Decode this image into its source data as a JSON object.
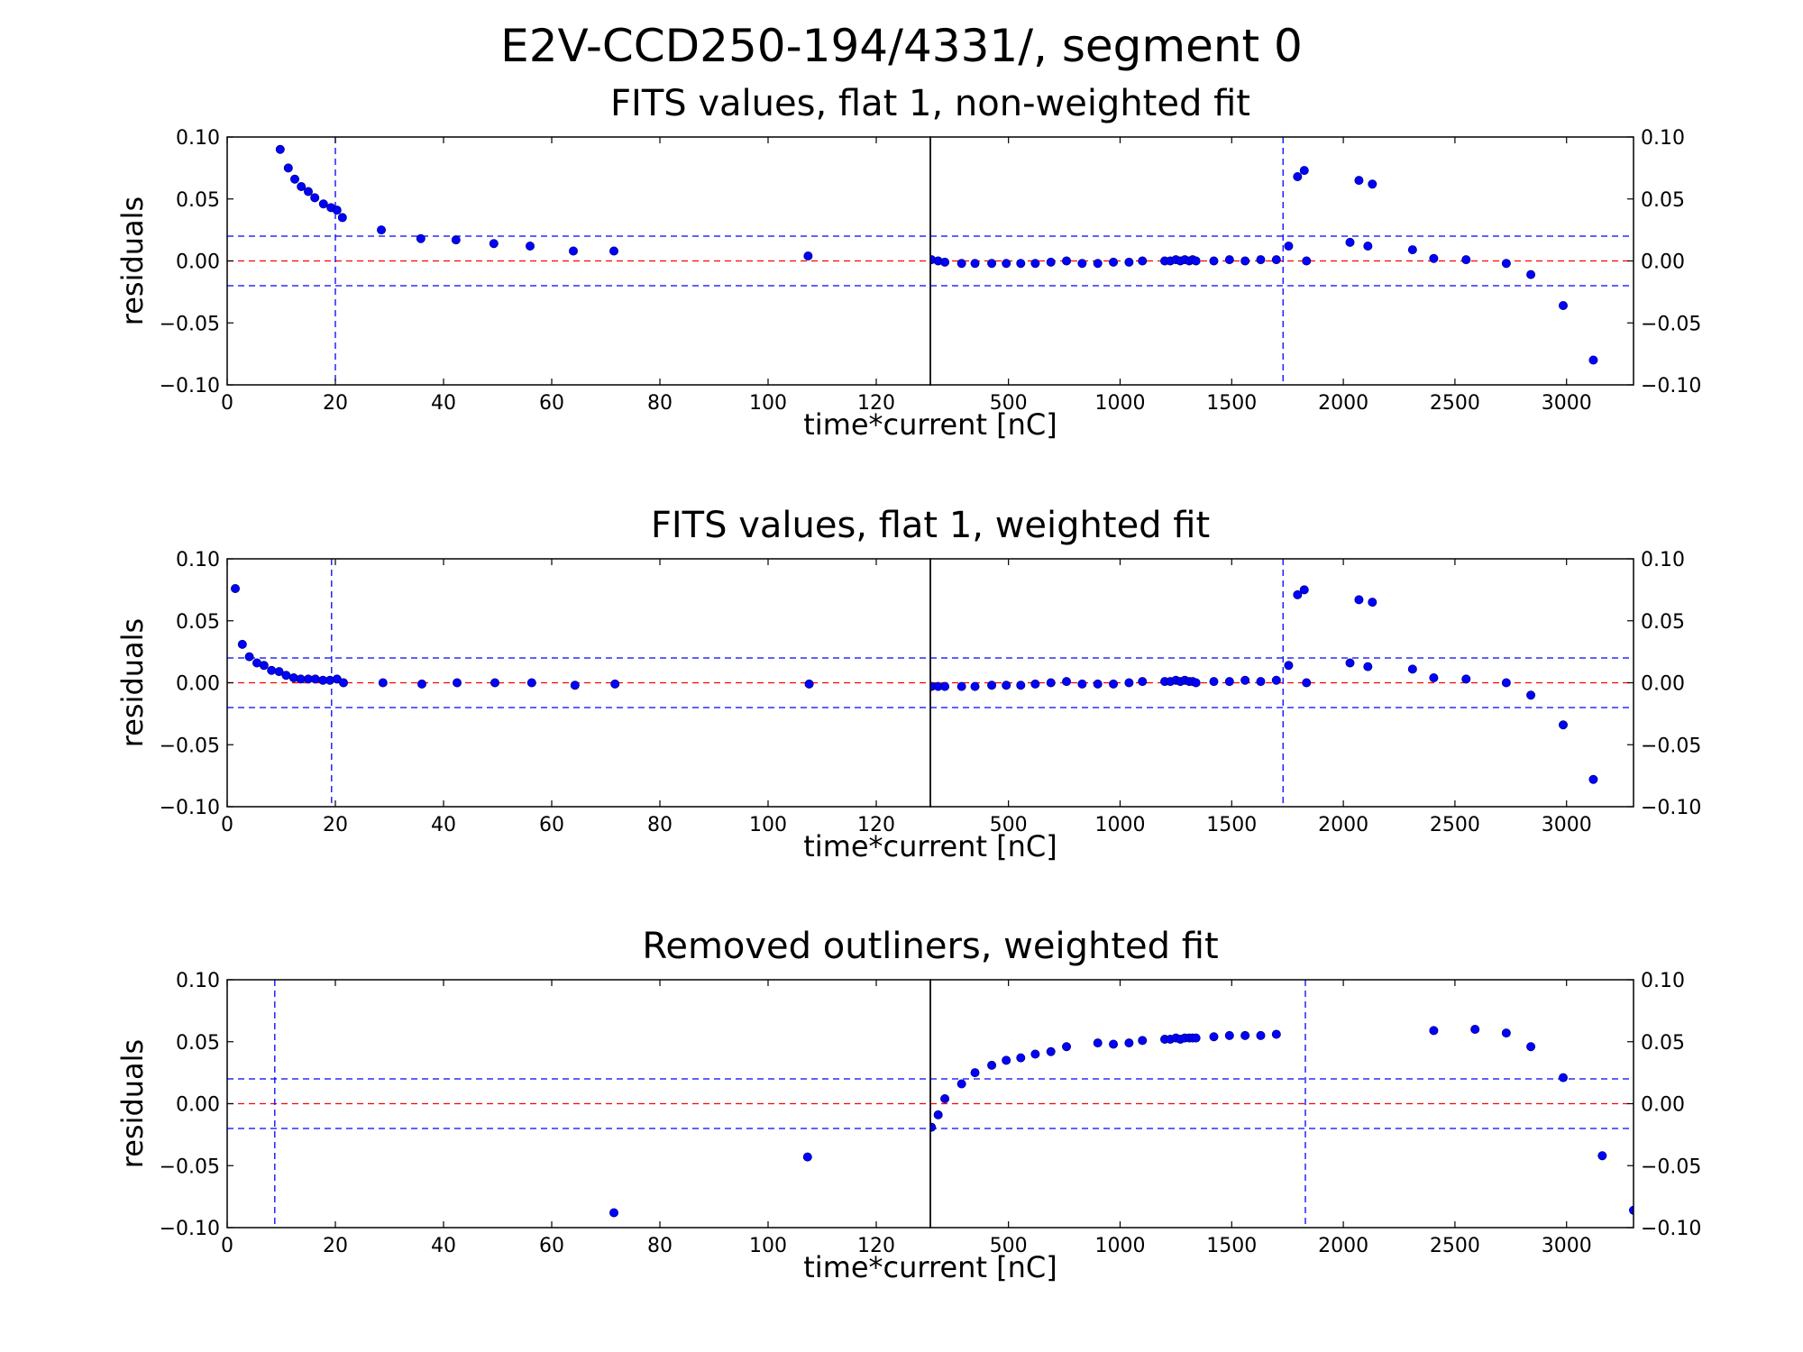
{
  "figure_title": "E2V-CCD250-194/4331/, segment 0",
  "colors": {
    "points": "#0000ff",
    "point_edge": "#000080",
    "zero_line": "#ff0000",
    "band_lines": "#0000ff"
  },
  "chart_data": [
    {
      "type": "scatter",
      "title": "FITS values, flat 1, non-weighted fit",
      "ylabel": "residuals",
      "xlabel": "time*current [nC]",
      "ylim": [
        -0.1,
        0.1
      ],
      "yticks": [
        "−0.10",
        "−0.05",
        "0.00",
        "0.05",
        "0.10"
      ],
      "yticks_right": [
        "−0.10",
        "−0.05",
        "0.00",
        "0.05",
        "0.10"
      ],
      "hlines": {
        "zero": 0.0,
        "band": [
          0.02,
          -0.02
        ]
      },
      "left": {
        "xlim": [
          0,
          130
        ],
        "xticks": [
          "0",
          "20",
          "40",
          "60",
          "80",
          "100",
          "120"
        ],
        "vline": 20,
        "points": [
          [
            9.8,
            0.09
          ],
          [
            11.3,
            0.075
          ],
          [
            12.5,
            0.066
          ],
          [
            13.7,
            0.06
          ],
          [
            15,
            0.056
          ],
          [
            16.2,
            0.051
          ],
          [
            17.8,
            0.046
          ],
          [
            19.2,
            0.043
          ],
          [
            20.3,
            0.041
          ],
          [
            21.3,
            0.035
          ],
          [
            28.5,
            0.025
          ],
          [
            35.8,
            0.018
          ],
          [
            42.3,
            0.017
          ],
          [
            49.3,
            0.014
          ],
          [
            56,
            0.012
          ],
          [
            64,
            0.008
          ],
          [
            71.5,
            0.008
          ],
          [
            107.4,
            0.004
          ]
        ]
      },
      "right": {
        "xlim": [
          150,
          3300
        ],
        "xticks": [
          "500",
          "1000",
          "1500",
          "2000",
          "2500",
          "3000"
        ],
        "vline": 1730,
        "points": [
          [
            155,
            0.001
          ],
          [
            185,
            0
          ],
          [
            215,
            -0.001
          ],
          [
            290,
            -0.002
          ],
          [
            350,
            -0.002
          ],
          [
            425,
            -0.002
          ],
          [
            490,
            -0.002
          ],
          [
            555,
            -0.002
          ],
          [
            620,
            -0.002
          ],
          [
            690,
            -0.001
          ],
          [
            760,
            0
          ],
          [
            830,
            -0.002
          ],
          [
            900,
            -0.002
          ],
          [
            970,
            -0.001
          ],
          [
            1040,
            -0.001
          ],
          [
            1100,
            0
          ],
          [
            1200,
            0
          ],
          [
            1225,
            0
          ],
          [
            1250,
            0.001
          ],
          [
            1270,
            0
          ],
          [
            1290,
            0.001
          ],
          [
            1310,
            0
          ],
          [
            1325,
            0.001
          ],
          [
            1340,
            0
          ],
          [
            1420,
            0
          ],
          [
            1490,
            0.001
          ],
          [
            1560,
            0
          ],
          [
            1630,
            0.001
          ],
          [
            1700,
            0.001
          ],
          [
            1755,
            0.012
          ],
          [
            1795,
            0.068
          ],
          [
            1825,
            0.073
          ],
          [
            1835,
            0
          ],
          [
            2030,
            0.015
          ],
          [
            2070,
            0.065
          ],
          [
            2110,
            0.012
          ],
          [
            2130,
            0.062
          ],
          [
            2310,
            0.009
          ],
          [
            2405,
            0.002
          ],
          [
            2550,
            0.001
          ],
          [
            2730,
            -0.002
          ],
          [
            2840,
            -0.011
          ],
          [
            2985,
            -0.036
          ],
          [
            3120,
            -0.08
          ]
        ]
      }
    },
    {
      "type": "scatter",
      "title": "FITS values, flat 1, weighted fit",
      "ylabel": "residuals",
      "xlabel": "time*current [nC]",
      "ylim": [
        -0.1,
        0.1
      ],
      "yticks": [
        "−0.10",
        "−0.05",
        "0.00",
        "0.05",
        "0.10"
      ],
      "yticks_right": [
        "−0.10",
        "−0.05",
        "0.00",
        "0.05",
        "0.10"
      ],
      "hlines": {
        "zero": 0.0,
        "band": [
          0.02,
          -0.02
        ]
      },
      "left": {
        "xlim": [
          0,
          130
        ],
        "xticks": [
          "0",
          "20",
          "40",
          "60",
          "80",
          "100",
          "120"
        ],
        "vline": 19.3,
        "points": [
          [
            1.5,
            0.076
          ],
          [
            2.8,
            0.031
          ],
          [
            4.1,
            0.021
          ],
          [
            5.5,
            0.016
          ],
          [
            6.8,
            0.014
          ],
          [
            8.2,
            0.01
          ],
          [
            9.6,
            0.009
          ],
          [
            10.9,
            0.006
          ],
          [
            12.3,
            0.004
          ],
          [
            13.6,
            0.003
          ],
          [
            15,
            0.003
          ],
          [
            16.3,
            0.003
          ],
          [
            17.7,
            0.002
          ],
          [
            19,
            0.002
          ],
          [
            20.3,
            0.003
          ],
          [
            21.5,
            0
          ],
          [
            28.8,
            0
          ],
          [
            36,
            -0.001
          ],
          [
            42.5,
            0
          ],
          [
            49.5,
            0
          ],
          [
            56.3,
            0
          ],
          [
            64.3,
            -0.002
          ],
          [
            71.7,
            -0.001
          ],
          [
            107.6,
            -0.001
          ]
        ]
      },
      "right": {
        "xlim": [
          150,
          3300
        ],
        "xticks": [
          "500",
          "1000",
          "1500",
          "2000",
          "2500",
          "3000"
        ],
        "vline": 1730,
        "points": [
          [
            155,
            -0.003
          ],
          [
            185,
            -0.003
          ],
          [
            215,
            -0.003
          ],
          [
            290,
            -0.003
          ],
          [
            350,
            -0.003
          ],
          [
            425,
            -0.002
          ],
          [
            490,
            -0.002
          ],
          [
            555,
            -0.002
          ],
          [
            620,
            -0.001
          ],
          [
            690,
            0
          ],
          [
            760,
            0.001
          ],
          [
            830,
            -0.001
          ],
          [
            900,
            -0.001
          ],
          [
            970,
            -0.001
          ],
          [
            1040,
            0
          ],
          [
            1100,
            0.001
          ],
          [
            1200,
            0.001
          ],
          [
            1225,
            0.001
          ],
          [
            1250,
            0.002
          ],
          [
            1270,
            0.001
          ],
          [
            1290,
            0.002
          ],
          [
            1310,
            0.001
          ],
          [
            1325,
            0.001
          ],
          [
            1340,
            0
          ],
          [
            1420,
            0.001
          ],
          [
            1490,
            0.001
          ],
          [
            1560,
            0.002
          ],
          [
            1630,
            0.001
          ],
          [
            1700,
            0.002
          ],
          [
            1755,
            0.014
          ],
          [
            1795,
            0.071
          ],
          [
            1825,
            0.075
          ],
          [
            1835,
            0
          ],
          [
            2030,
            0.016
          ],
          [
            2070,
            0.067
          ],
          [
            2110,
            0.013
          ],
          [
            2130,
            0.065
          ],
          [
            2310,
            0.011
          ],
          [
            2405,
            0.004
          ],
          [
            2550,
            0.003
          ],
          [
            2730,
            0
          ],
          [
            2840,
            -0.01
          ],
          [
            2985,
            -0.034
          ],
          [
            3120,
            -0.078
          ]
        ]
      }
    },
    {
      "type": "scatter",
      "title": "Removed outliners, weighted fit",
      "ylabel": "residuals",
      "xlabel": "time*current [nC]",
      "ylim": [
        -0.1,
        0.1
      ],
      "yticks": [
        "−0.10",
        "−0.05",
        "0.00",
        "0.05",
        "0.10"
      ],
      "yticks_right": [
        "−0.10",
        "−0.05",
        "0.00",
        "0.05",
        "0.10"
      ],
      "hlines": {
        "zero": 0.0,
        "band": [
          0.02,
          -0.02
        ]
      },
      "left": {
        "xlim": [
          0,
          130
        ],
        "xticks": [
          "0",
          "20",
          "40",
          "60",
          "80",
          "100",
          "120"
        ],
        "vline": 8.8,
        "points": [
          [
            71.5,
            -0.088
          ],
          [
            107.3,
            -0.043
          ]
        ]
      },
      "right": {
        "xlim": [
          150,
          3300
        ],
        "xticks": [
          "500",
          "1000",
          "1500",
          "2000",
          "2500",
          "3000"
        ],
        "vline": 1830,
        "points": [
          [
            155,
            -0.019
          ],
          [
            185,
            -0.009
          ],
          [
            215,
            0.004
          ],
          [
            290,
            0.016
          ],
          [
            350,
            0.025
          ],
          [
            425,
            0.031
          ],
          [
            490,
            0.035
          ],
          [
            555,
            0.037
          ],
          [
            620,
            0.04
          ],
          [
            690,
            0.042
          ],
          [
            760,
            0.046
          ],
          [
            900,
            0.049
          ],
          [
            970,
            0.048
          ],
          [
            1040,
            0.049
          ],
          [
            1100,
            0.051
          ],
          [
            1200,
            0.052
          ],
          [
            1225,
            0.052
          ],
          [
            1250,
            0.053
          ],
          [
            1270,
            0.052
          ],
          [
            1290,
            0.053
          ],
          [
            1310,
            0.053
          ],
          [
            1325,
            0.053
          ],
          [
            1340,
            0.053
          ],
          [
            1420,
            0.054
          ],
          [
            1490,
            0.055
          ],
          [
            1560,
            0.055
          ],
          [
            1630,
            0.055
          ],
          [
            1700,
            0.056
          ],
          [
            2405,
            0.059
          ],
          [
            2590,
            0.06
          ],
          [
            2730,
            0.057
          ],
          [
            2840,
            0.046
          ],
          [
            2985,
            0.021
          ],
          [
            3160,
            -0.042
          ],
          [
            3300,
            -0.086
          ]
        ]
      }
    }
  ]
}
